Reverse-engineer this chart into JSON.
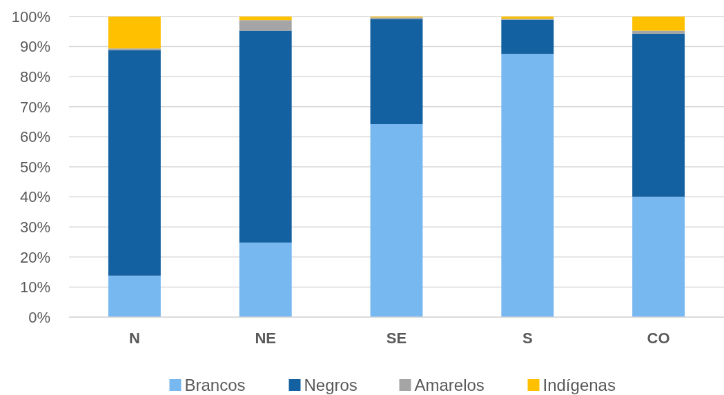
{
  "chart_data": {
    "type": "bar",
    "stacked": true,
    "categories": [
      "N",
      "NE",
      "SE",
      "S",
      "CO"
    ],
    "series": [
      {
        "name": "Brancos",
        "color": "#78b8f0",
        "values": [
          13.8,
          24.8,
          64.2,
          87.6,
          40
        ]
      },
      {
        "name": "Negros",
        "color": "#1361a0",
        "values": [
          75,
          70.5,
          35,
          11.3,
          54.3
        ]
      },
      {
        "name": "Amarelos",
        "color": "#a5a5a5",
        "values": [
          0.6,
          3.5,
          0.5,
          0.4,
          1
        ]
      },
      {
        "name": "Indígenas",
        "color": "#ffc000",
        "values": [
          10.6,
          1.2,
          0.3,
          0.7,
          4.7
        ]
      }
    ],
    "ylim": [
      0,
      100
    ],
    "yticks": [
      {
        "value": 0,
        "label": "0%"
      },
      {
        "value": 10,
        "label": "10%"
      },
      {
        "value": 20,
        "label": "20%"
      },
      {
        "value": 30,
        "label": "30%"
      },
      {
        "value": 40,
        "label": "40%"
      },
      {
        "value": 50,
        "label": "50%"
      },
      {
        "value": 60,
        "label": "60%"
      },
      {
        "value": 70,
        "label": "70%"
      },
      {
        "value": 80,
        "label": "80%"
      },
      {
        "value": 90,
        "label": "90%"
      },
      {
        "value": 100,
        "label": "100%"
      }
    ],
    "grid": "y",
    "legend": "bottom"
  }
}
